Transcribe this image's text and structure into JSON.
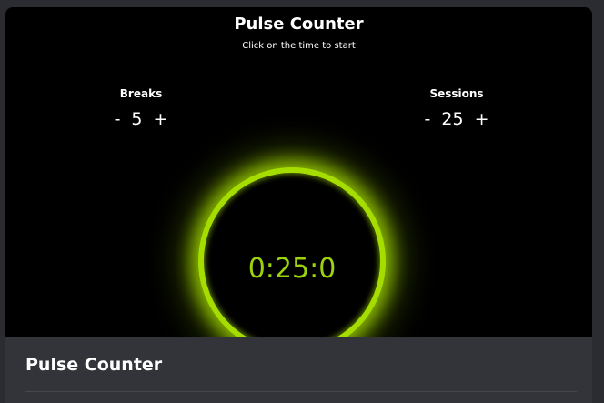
{
  "app": {
    "title": "Pulse Counter",
    "subtitle": "Click on the time to start"
  },
  "breaks": {
    "label": "Breaks",
    "minus": "-",
    "value": "5",
    "plus": "+"
  },
  "sessions": {
    "label": "Sessions",
    "minus": "-",
    "value": "25",
    "plus": "+"
  },
  "timer": {
    "display": "0:25:0"
  },
  "footer": {
    "title": "Pulse Counter"
  },
  "colors": {
    "accent": "#a6dd00",
    "time_text": "#9bd10d",
    "background": "#000000",
    "footer_bg": "#323439"
  }
}
